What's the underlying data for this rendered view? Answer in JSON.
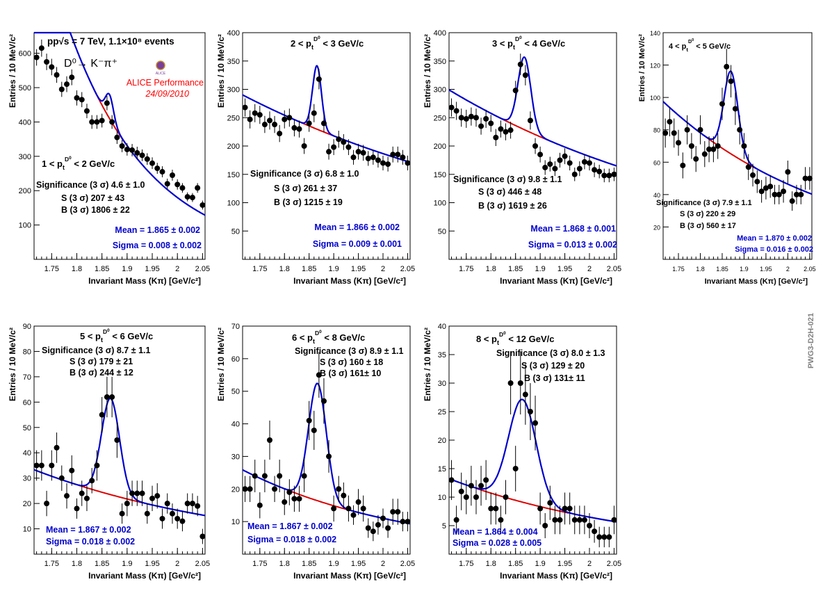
{
  "figure": {
    "side_label": "PWG3-D2H-021",
    "header": {
      "line1": "pp√s = 7 TeV, 1.1×10⁸ events",
      "decay": "D⁰→ K⁻π⁺",
      "performance": "ALICE Performance",
      "date": "24/09/2010",
      "logo_text": "ALICE"
    },
    "colors": {
      "data": "#000000",
      "fit": "#0000cc",
      "background": "#dd0000",
      "mean_sigma": "#0000cc",
      "performance": "#ff0000",
      "side_label": "#808080"
    }
  },
  "chart_data": [
    {
      "type": "scatter",
      "title": "1 < p_t^D0 < 2 GeV/c",
      "xlabel": "Invariant Mass (Kπ) [GeV/c²]",
      "ylabel": "Entries / 10 MeV/c²",
      "xlim": [
        1.715,
        2.055
      ],
      "ylim": [
        0,
        660
      ],
      "xticks": [
        1.75,
        1.8,
        1.85,
        1.9,
        1.95,
        2.0,
        2.05
      ],
      "xtick_labels": [
        "1.75",
        "1.8",
        "1.85",
        "1.9",
        "1.95",
        "2",
        "2.05"
      ],
      "yticks": [
        100,
        200,
        300,
        400,
        500,
        600
      ],
      "ytick_labels": [
        "100",
        "200",
        "300",
        "400",
        "500",
        "600"
      ],
      "x": [
        1.72,
        1.73,
        1.74,
        1.75,
        1.76,
        1.77,
        1.78,
        1.79,
        1.8,
        1.81,
        1.82,
        1.83,
        1.84,
        1.85,
        1.86,
        1.87,
        1.88,
        1.89,
        1.9,
        1.91,
        1.92,
        1.93,
        1.94,
        1.95,
        1.96,
        1.97,
        1.98,
        1.99,
        2.0,
        2.01,
        2.02,
        2.03,
        2.04,
        2.05
      ],
      "y": [
        588,
        615,
        575,
        560,
        537,
        495,
        510,
        530,
        470,
        465,
        432,
        400,
        400,
        404,
        455,
        400,
        355,
        330,
        320,
        318,
        310,
        303,
        292,
        280,
        265,
        255,
        220,
        245,
        218,
        208,
        182,
        180,
        208,
        158
      ],
      "errors": [
        24,
        25,
        24,
        24,
        23,
        22,
        23,
        23,
        22,
        22,
        21,
        20,
        20,
        20,
        21,
        20,
        19,
        18,
        18,
        18,
        18,
        17,
        17,
        17,
        16,
        16,
        15,
        16,
        15,
        14,
        13,
        13,
        14,
        13
      ],
      "fit": {
        "mean": 1.865,
        "sigma": 0.008,
        "background": {
          "a": 410,
          "k": 6.1
        },
        "peak_amplitude": 70
      },
      "annotations": {
        "significance": "Significance (3 σ) 4.6 ± 1.0",
        "signal": "S (3 σ) 207 ± 43",
        "bkg": "B (3 σ) 1806 ± 22",
        "mean": "Mean = 1.865 ± 0.002",
        "sigma": "Sigma = 0.008 ± 0.002"
      }
    },
    {
      "type": "scatter",
      "title": "2 < p_t^D0 < 3 GeV/c",
      "xlabel": "Invariant Mass (Kπ) [GeV/c²]",
      "ylabel": "Entries / 10 MeV/c²",
      "xlim": [
        1.715,
        2.055
      ],
      "ylim": [
        0,
        400
      ],
      "xticks": [
        1.75,
        1.8,
        1.85,
        1.9,
        1.95,
        2.0,
        2.05
      ],
      "xtick_labels": [
        "1.75",
        "1.8",
        "1.85",
        "1.9",
        "1.95",
        "2",
        "2.05"
      ],
      "yticks": [
        50,
        100,
        150,
        200,
        250,
        300,
        350,
        400
      ],
      "ytick_labels": [
        "50",
        "100",
        "150",
        "200",
        "250",
        "300",
        "350",
        "400"
      ],
      "x": [
        1.72,
        1.73,
        1.74,
        1.75,
        1.76,
        1.77,
        1.78,
        1.79,
        1.8,
        1.81,
        1.82,
        1.83,
        1.84,
        1.85,
        1.86,
        1.87,
        1.88,
        1.89,
        1.9,
        1.91,
        1.92,
        1.93,
        1.94,
        1.95,
        1.96,
        1.97,
        1.98,
        1.99,
        2.0,
        2.01,
        2.02,
        2.03,
        2.04,
        2.05
      ],
      "y": [
        268,
        247,
        258,
        255,
        238,
        245,
        238,
        222,
        247,
        250,
        232,
        230,
        200,
        240,
        258,
        318,
        240,
        190,
        198,
        212,
        207,
        198,
        180,
        190,
        188,
        178,
        180,
        175,
        170,
        168,
        185,
        185,
        180,
        170
      ],
      "errors": [
        16,
        16,
        16,
        16,
        15,
        16,
        15,
        15,
        16,
        16,
        15,
        15,
        14,
        15,
        16,
        18,
        15,
        14,
        14,
        15,
        14,
        14,
        13,
        14,
        14,
        13,
        13,
        13,
        13,
        13,
        14,
        14,
        13,
        13
      ],
      "fit": {
        "mean": 1.866,
        "sigma": 0.009,
        "background": {
          "a": 230,
          "k": 1.55
        },
        "peak_amplitude": 112
      },
      "annotations": {
        "significance": "Significance (3 σ) 6.8 ± 1.0",
        "signal": "S (3 σ) 261 ± 37",
        "bkg": "B (3 σ) 1215 ± 19",
        "mean": "Mean = 1.866 ± 0.002",
        "sigma": "Sigma = 0.009 ± 0.001"
      }
    },
    {
      "type": "scatter",
      "title": "3 < p_t^D0 < 4 GeV/c",
      "xlabel": "Invariant Mass (Kπ) [GeV/c²]",
      "ylabel": "Entries / 10 MeV/c²",
      "xlim": [
        1.715,
        2.055
      ],
      "ylim": [
        0,
        400
      ],
      "xticks": [
        1.75,
        1.8,
        1.85,
        1.9,
        1.95,
        2.0,
        2.05
      ],
      "xtick_labels": [
        "1.75",
        "1.8",
        "1.85",
        "1.9",
        "1.95",
        "2",
        "2.05"
      ],
      "yticks": [
        50,
        100,
        150,
        200,
        250,
        300,
        350,
        400
      ],
      "ytick_labels": [
        "50",
        "100",
        "150",
        "200",
        "250",
        "300",
        "350",
        "400"
      ],
      "x": [
        1.72,
        1.73,
        1.74,
        1.75,
        1.76,
        1.77,
        1.78,
        1.79,
        1.8,
        1.81,
        1.82,
        1.83,
        1.84,
        1.85,
        1.86,
        1.87,
        1.88,
        1.89,
        1.9,
        1.91,
        1.92,
        1.93,
        1.94,
        1.95,
        1.96,
        1.97,
        1.98,
        1.99,
        2.0,
        2.01,
        2.02,
        2.03,
        2.04,
        2.05
      ],
      "y": [
        268,
        262,
        250,
        248,
        252,
        250,
        235,
        248,
        240,
        215,
        230,
        225,
        228,
        298,
        344,
        325,
        245,
        200,
        185,
        162,
        168,
        160,
        175,
        182,
        170,
        150,
        160,
        172,
        170,
        158,
        155,
        148,
        148,
        150
      ],
      "errors": [
        16,
        16,
        16,
        16,
        16,
        16,
        15,
        16,
        15,
        15,
        15,
        15,
        15,
        17,
        19,
        18,
        16,
        14,
        14,
        13,
        13,
        13,
        13,
        14,
        13,
        12,
        13,
        13,
        13,
        13,
        12,
        12,
        12,
        12
      ],
      "fit": {
        "mean": 1.868,
        "sigma": 0.013,
        "background": {
          "a": 230,
          "k": 1.75
        },
        "peak_amplitude": 128
      },
      "annotations": {
        "significance": "Significance (3 σ) 9.8 ± 1.1",
        "signal": "S (3 σ) 446 ± 48",
        "bkg": "B (3 σ) 1619 ± 26",
        "mean": "Mean = 1.868 ± 0.001",
        "sigma": "Sigma = 0.013 ± 0.002"
      }
    },
    {
      "type": "scatter",
      "title": "4 < p_t^D0 < 5 GeV/c",
      "xlabel": "Invariant Mass (Kπ) [GeV/c²]",
      "ylabel": "Entries / 10 MeV/c²",
      "xlim": [
        1.715,
        2.055
      ],
      "ylim": [
        0,
        140
      ],
      "xticks": [
        1.75,
        1.8,
        1.85,
        1.9,
        1.95,
        2.0,
        2.05
      ],
      "xtick_labels": [
        "1.75",
        "1.8",
        "1.85",
        "1.9",
        "1.95",
        "2",
        "2.05"
      ],
      "yticks": [
        20,
        40,
        60,
        80,
        100,
        120,
        140
      ],
      "ytick_labels": [
        "20",
        "40",
        "60",
        "80",
        "100",
        "120",
        "140"
      ],
      "x": [
        1.72,
        1.73,
        1.74,
        1.75,
        1.76,
        1.77,
        1.78,
        1.79,
        1.8,
        1.81,
        1.82,
        1.83,
        1.84,
        1.85,
        1.86,
        1.87,
        1.88,
        1.89,
        1.9,
        1.91,
        1.92,
        1.93,
        1.94,
        1.95,
        1.96,
        1.97,
        1.98,
        1.99,
        2.0,
        2.01,
        2.02,
        2.03,
        2.04,
        2.05
      ],
      "y": [
        78,
        85,
        78,
        72,
        58,
        80,
        70,
        62,
        80,
        65,
        68,
        68,
        70,
        96,
        119,
        110,
        93,
        80,
        70,
        57,
        52,
        48,
        42,
        44,
        45,
        40,
        40,
        42,
        54,
        36,
        40,
        40,
        50,
        50
      ],
      "errors": [
        9,
        9,
        9,
        8,
        8,
        9,
        8,
        8,
        9,
        8,
        8,
        8,
        8,
        10,
        11,
        10,
        10,
        9,
        8,
        8,
        7,
        7,
        7,
        7,
        7,
        6,
        6,
        7,
        7,
        6,
        6,
        6,
        7,
        7
      ],
      "fit": {
        "mean": 1.87,
        "sigma": 0.016,
        "background": {
          "a": 66,
          "k": 2.6
        },
        "peak_amplitude": 51
      },
      "annotations": {
        "significance": "Significance (3 σ) 7.9 ± 1.1",
        "signal": "S (3 σ) 220 ± 29",
        "bkg": "B (3 σ) 560 ± 17",
        "mean": "Mean = 1.870 ± 0.002",
        "sigma": "Sigma = 0.016 ± 0.002"
      }
    },
    {
      "type": "scatter",
      "title": "5 < p_t^D0 < 6 GeV/c",
      "xlabel": "Invariant Mass (Kπ) [GeV/c²]",
      "ylabel": "Entries / 10 MeV/c²",
      "xlim": [
        1.715,
        2.055
      ],
      "ylim": [
        0,
        90
      ],
      "xticks": [
        1.75,
        1.8,
        1.85,
        1.9,
        1.95,
        2.0,
        2.05
      ],
      "xtick_labels": [
        "1.75",
        "1.8",
        "1.85",
        "1.9",
        "1.95",
        "2",
        "2.05"
      ],
      "yticks": [
        10,
        20,
        30,
        40,
        50,
        60,
        70,
        80,
        90
      ],
      "ytick_labels": [
        "10",
        "20",
        "30",
        "40",
        "50",
        "60",
        "70",
        "80",
        "90"
      ],
      "x": [
        1.72,
        1.73,
        1.74,
        1.75,
        1.76,
        1.77,
        1.78,
        1.79,
        1.8,
        1.81,
        1.82,
        1.83,
        1.84,
        1.85,
        1.86,
        1.87,
        1.88,
        1.89,
        1.9,
        1.91,
        1.92,
        1.93,
        1.94,
        1.95,
        1.96,
        1.97,
        1.98,
        1.99,
        2.0,
        2.01,
        2.02,
        2.03,
        2.04,
        2.05
      ],
      "y": [
        35,
        35,
        20,
        35,
        42,
        30,
        23,
        33,
        18,
        24,
        22,
        29,
        35,
        55,
        62,
        62,
        45,
        16,
        20,
        24,
        24,
        24,
        16,
        22,
        23,
        14,
        20,
        16,
        14,
        13,
        20,
        20,
        19,
        7
      ],
      "errors": [
        6,
        6,
        5,
        6,
        6,
        5,
        5,
        6,
        4,
        5,
        5,
        5,
        6,
        7,
        8,
        8,
        7,
        4,
        5,
        5,
        5,
        5,
        4,
        5,
        5,
        4,
        4,
        4,
        4,
        4,
        4,
        4,
        4,
        3
      ],
      "fit": {
        "mean": 1.867,
        "sigma": 0.018,
        "background": {
          "a": 23.6,
          "k": 2.3
        },
        "peak_amplitude": 38
      },
      "annotations": {
        "significance": "Significance (3 σ) 8.7 ± 1.1",
        "signal": "S (3 σ) 179 ± 21",
        "bkg": "B (3 σ) 244 ± 12",
        "mean": "Mean = 1.867 ± 0.002",
        "sigma": "Sigma = 0.018 ± 0.002"
      }
    },
    {
      "type": "scatter",
      "title": "6 < p_t^D0 < 8 GeV/c",
      "xlabel": "Invariant Mass (Kπ) [GeV/c²]",
      "ylabel": "Entries / 10 MeV/c²",
      "xlim": [
        1.715,
        2.055
      ],
      "ylim": [
        0,
        70
      ],
      "xticks": [
        1.75,
        1.8,
        1.85,
        1.9,
        1.95,
        2.0,
        2.05
      ],
      "xtick_labels": [
        "1.75",
        "1.8",
        "1.85",
        "1.9",
        "1.95",
        "2",
        "2.05"
      ],
      "yticks": [
        10,
        20,
        30,
        40,
        50,
        60,
        70
      ],
      "ytick_labels": [
        "10",
        "20",
        "30",
        "40",
        "50",
        "60",
        "70"
      ],
      "x": [
        1.72,
        1.73,
        1.74,
        1.75,
        1.76,
        1.77,
        1.78,
        1.79,
        1.8,
        1.81,
        1.82,
        1.83,
        1.84,
        1.85,
        1.86,
        1.87,
        1.88,
        1.89,
        1.9,
        1.91,
        1.92,
        1.93,
        1.94,
        1.95,
        1.96,
        1.97,
        1.98,
        1.99,
        2.0,
        2.01,
        2.02,
        2.03,
        2.04,
        2.05
      ],
      "y": [
        20,
        20,
        24,
        15,
        24,
        35,
        20,
        24,
        16,
        19,
        17,
        17,
        24,
        41,
        38,
        55,
        47,
        30,
        14,
        20,
        18,
        14,
        12,
        16,
        14,
        8,
        7,
        9,
        11,
        8,
        13,
        13,
        10,
        10
      ],
      "errors": [
        4,
        4,
        5,
        4,
        5,
        6,
        4,
        5,
        4,
        4,
        4,
        4,
        5,
        6,
        6,
        7,
        7,
        5,
        4,
        4,
        4,
        4,
        3,
        4,
        4,
        3,
        3,
        3,
        3,
        3,
        4,
        4,
        3,
        3
      ],
      "fit": {
        "mean": 1.867,
        "sigma": 0.018,
        "background": {
          "a": 16.5,
          "k": 3.0
        },
        "peak_amplitude": 36
      },
      "annotations": {
        "significance": "Significance (3 σ) 8.9 ± 1.1",
        "signal": "S (3 σ) 160 ± 18",
        "bkg": "B (3 σ) 161± 10",
        "mean": "Mean = 1.867 ± 0.002",
        "sigma": "Sigma = 0.018 ± 0.002"
      }
    },
    {
      "type": "scatter",
      "title": "8 < p_t^D0 < 12 GeV/c",
      "xlabel": "Invariant Mass (Kπ) [GeV/c²]",
      "ylabel": "Entries / 10 MeV/c²",
      "xlim": [
        1.715,
        2.055
      ],
      "ylim": [
        0,
        40
      ],
      "xticks": [
        1.75,
        1.8,
        1.85,
        1.9,
        1.95,
        2.0,
        2.05
      ],
      "xtick_labels": [
        "1.75",
        "1.8",
        "1.85",
        "1.9",
        "1.95",
        "2",
        "2.05"
      ],
      "yticks": [
        5,
        10,
        15,
        20,
        25,
        30,
        35,
        40
      ],
      "ytick_labels": [
        "5",
        "10",
        "15",
        "20",
        "25",
        "30",
        "35",
        "40"
      ],
      "x": [
        1.72,
        1.73,
        1.74,
        1.75,
        1.76,
        1.77,
        1.78,
        1.79,
        1.8,
        1.81,
        1.82,
        1.83,
        1.84,
        1.85,
        1.86,
        1.87,
        1.88,
        1.89,
        1.9,
        1.91,
        1.92,
        1.93,
        1.94,
        1.95,
        1.96,
        1.97,
        1.98,
        1.99,
        2.0,
        2.01,
        2.02,
        2.03,
        2.04,
        2.05
      ],
      "y": [
        13,
        6,
        11,
        10,
        12,
        10,
        12,
        13,
        8,
        8,
        6,
        10,
        30,
        15,
        30,
        28,
        25,
        23,
        8,
        5,
        9,
        6,
        6,
        8,
        8,
        6,
        6,
        6,
        5,
        4,
        3,
        3,
        3,
        6
      ],
      "errors": [
        3.5,
        2.5,
        3.3,
        3,
        3.5,
        3,
        3.5,
        3.5,
        2.8,
        2.8,
        2.5,
        3,
        5.5,
        4,
        5.5,
        5.3,
        5,
        4.8,
        2.8,
        2.2,
        3,
        2.5,
        2.5,
        2.8,
        2.8,
        2.5,
        2.5,
        2.5,
        2.2,
        2,
        1.8,
        1.8,
        1.8,
        2.5
      ],
      "fit": {
        "mean": 1.864,
        "sigma": 0.028,
        "background": {
          "a": 9.1,
          "k": 2.5
        },
        "peak_amplitude": 18
      },
      "annotations": {
        "significance": "Significance (3 σ) 8.0 ± 1.3",
        "signal": "S (3 σ) 129 ± 20",
        "bkg": "B (3 σ) 131± 11",
        "mean": "Mean = 1.864 ± 0.004",
        "sigma": "Sigma = 0.028 ± 0.005"
      }
    }
  ]
}
